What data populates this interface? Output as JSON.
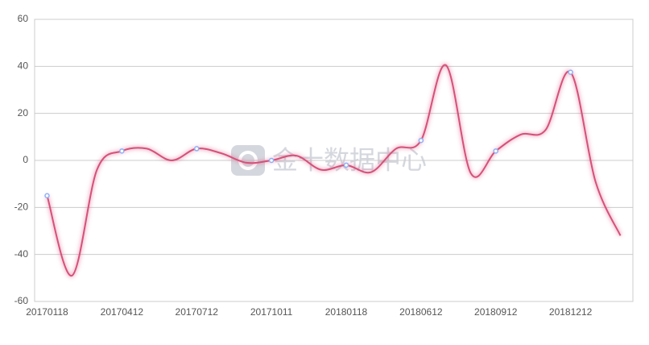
{
  "chart_data": {
    "type": "line",
    "watermark": "金十数据中心",
    "categories": [
      "20170118",
      null,
      null,
      "20170412",
      null,
      null,
      "20170712",
      null,
      null,
      "20171011",
      null,
      null,
      "20180118",
      null,
      null,
      "20180612",
      null,
      null,
      "20180912",
      null,
      null,
      "20181212",
      null,
      null
    ],
    "series": [
      {
        "color": "#d6507a",
        "values": [
          -15,
          -49,
          -4,
          4,
          5,
          0,
          5,
          3,
          -1,
          0,
          2,
          -4,
          -2,
          -5,
          5,
          8.5,
          40.5,
          -5.5,
          4,
          11,
          13,
          37.5,
          -9,
          -32
        ]
      }
    ],
    "ylim": [
      -60,
      60
    ],
    "yticks": [
      60,
      40,
      20,
      0,
      -20,
      -40,
      -60
    ],
    "grid": true
  }
}
